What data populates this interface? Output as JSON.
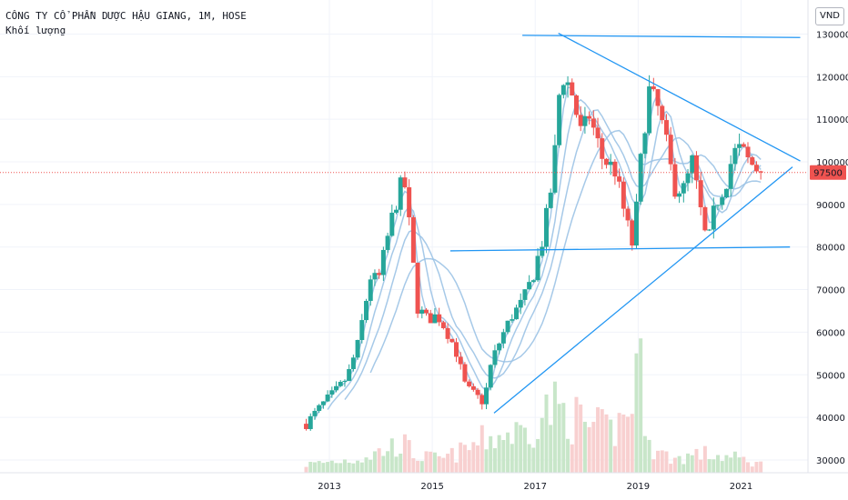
{
  "legend": {
    "symbol_title": "CÔNG TY CỔ PHẦN DƯỢC HẬU GIANG, 1M, HOSE",
    "volume_label": "Khối lượng"
  },
  "currency": "VND",
  "last_price_label": "97500",
  "colors": {
    "up": "#26a69a",
    "down": "#ef5350",
    "volume_up": "#c8e6c9",
    "volume_down": "#f8d0d0",
    "moving_average": "#9cc3e6",
    "trendline": "#2196f3",
    "last_price_line": "#ef5350"
  },
  "chart_data": {
    "type": "candlestick",
    "y_axis": {
      "ticks": [
        30000,
        40000,
        50000,
        60000,
        70000,
        80000,
        90000,
        100000,
        110000,
        120000,
        130000
      ],
      "tick_labels": [
        "30000",
        "40000",
        "50000",
        "60000",
        "70000",
        "80000",
        "90000",
        "100000",
        "110000",
        "120000",
        "130000"
      ],
      "ylim": [
        27000,
        138000
      ],
      "position": "right"
    },
    "x_axis": {
      "tick_labels": [
        "2013",
        "2015",
        "2017",
        "2019",
        "2021"
      ],
      "tick_times": [
        2013.0,
        2015.0,
        2017.0,
        2019.0,
        2021.0
      ],
      "xlim": [
        2006.6,
        2022.3
      ]
    },
    "last_price": 97500,
    "price_path": [
      [
        2012.55,
        38500
      ],
      [
        2012.9,
        43500
      ],
      [
        2013.15,
        46500
      ],
      [
        2013.35,
        49500
      ],
      [
        2013.55,
        57000
      ],
      [
        2013.8,
        73000
      ],
      [
        2013.95,
        72000
      ],
      [
        2014.2,
        86000
      ],
      [
        2014.35,
        93000
      ],
      [
        2014.45,
        96000
      ],
      [
        2014.6,
        80000
      ],
      [
        2014.7,
        66000
      ],
      [
        2014.9,
        63000
      ],
      [
        2015.1,
        64000
      ],
      [
        2015.25,
        61000
      ],
      [
        2015.45,
        56000
      ],
      [
        2015.65,
        47000
      ],
      [
        2015.85,
        45000
      ],
      [
        2016.0,
        43500
      ],
      [
        2016.15,
        53000
      ],
      [
        2016.35,
        59000
      ],
      [
        2016.55,
        64000
      ],
      [
        2016.75,
        67000
      ],
      [
        2016.95,
        73000
      ],
      [
        2017.15,
        82000
      ],
      [
        2017.35,
        97000
      ],
      [
        2017.5,
        121000
      ],
      [
        2017.7,
        117000
      ],
      [
        2017.9,
        106000
      ],
      [
        2018.05,
        111000
      ],
      [
        2018.3,
        101000
      ],
      [
        2018.55,
        98000
      ],
      [
        2018.75,
        87000
      ],
      [
        2018.9,
        80000
      ],
      [
        2019.05,
        100000
      ],
      [
        2019.2,
        117000
      ],
      [
        2019.4,
        112000
      ],
      [
        2019.55,
        104000
      ],
      [
        2019.7,
        94000
      ],
      [
        2019.9,
        93500
      ],
      [
        2020.05,
        100000
      ],
      [
        2020.25,
        86000
      ],
      [
        2020.35,
        80000
      ],
      [
        2020.5,
        90000
      ],
      [
        2020.7,
        95000
      ],
      [
        2020.85,
        102000
      ],
      [
        2021.0,
        103000
      ],
      [
        2021.15,
        100000
      ],
      [
        2021.3,
        98500
      ],
      [
        2021.4,
        97500
      ]
    ],
    "volume_profile": [
      [
        2012.55,
        3
      ],
      [
        2013.0,
        4
      ],
      [
        2013.5,
        5
      ],
      [
        2013.9,
        7
      ],
      [
        2014.4,
        11
      ],
      [
        2014.7,
        6
      ],
      [
        2015.2,
        5
      ],
      [
        2015.6,
        8
      ],
      [
        2016.0,
        12
      ],
      [
        2016.4,
        14
      ],
      [
        2016.8,
        15
      ],
      [
        2017.3,
        24
      ],
      [
        2017.6,
        22
      ],
      [
        2018.0,
        17
      ],
      [
        2018.5,
        15
      ],
      [
        2018.8,
        22
      ],
      [
        2019.0,
        40
      ],
      [
        2019.3,
        8
      ],
      [
        2019.7,
        5
      ],
      [
        2020.2,
        7
      ],
      [
        2020.6,
        6
      ],
      [
        2021.0,
        5
      ],
      [
        2021.4,
        3
      ]
    ],
    "moving_averages": [
      {
        "length": 3,
        "color": "#9cc3e6"
      },
      {
        "length": 6,
        "color": "#9cc3e6"
      },
      {
        "length": 10,
        "color": "#9cc3e6"
      },
      {
        "length": 16,
        "color": "#9cc3e6"
      }
    ],
    "trendlines": [
      {
        "from": [
          2016.75,
          129700
        ],
        "to": [
          2022.15,
          129200
        ]
      },
      {
        "from": [
          2017.45,
          130200
        ],
        "to": [
          2022.15,
          100200
        ]
      },
      {
        "from": [
          2015.35,
          79100
        ],
        "to": [
          2021.95,
          80000
        ]
      },
      {
        "from": [
          2016.2,
          41000
        ],
        "to": [
          2022.0,
          98800
        ]
      }
    ]
  }
}
